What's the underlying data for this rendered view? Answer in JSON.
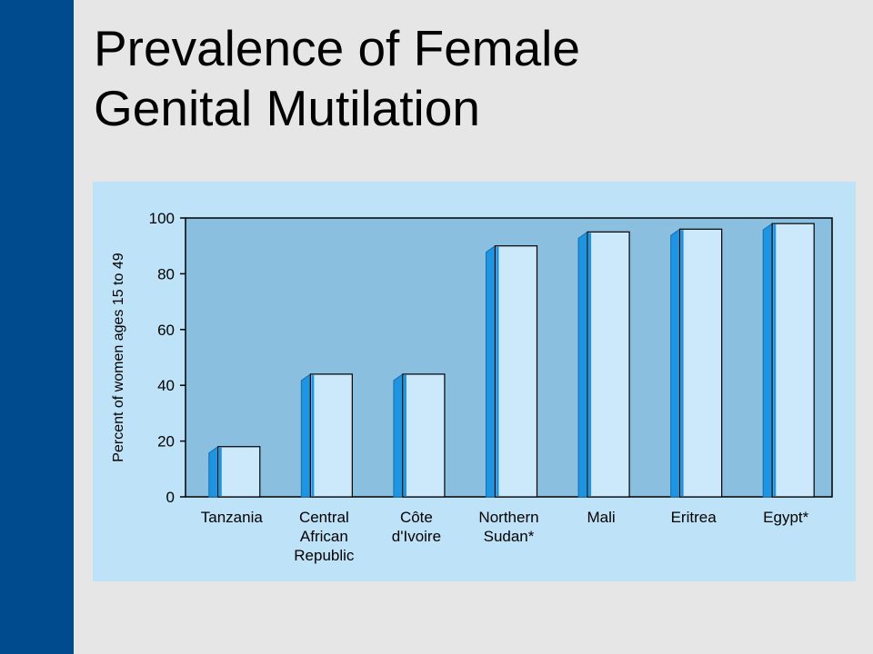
{
  "slide": {
    "title_line1": "Prevalence of Female",
    "title_line2": "Genital Mutilation"
  },
  "colors": {
    "side_bar": "#004b8d",
    "panel_background": "#bee2f7",
    "plot_background": "#8bbfe0",
    "bar_fill": "#cbe9fb",
    "bar_edge": "#1f94e0"
  },
  "chart_data": {
    "type": "bar",
    "title": "",
    "xlabel": "",
    "ylabel": "Percent of women ages 15 to 49",
    "ylim": [
      0,
      100
    ],
    "yticks": [
      "0",
      "20",
      "40",
      "60",
      "80",
      "100"
    ],
    "grid": false,
    "categories": [
      [
        "Tanzania"
      ],
      [
        "Central",
        "African",
        "Republic"
      ],
      [
        "Côte",
        "d'Ivoire"
      ],
      [
        "Northern",
        "Sudan*"
      ],
      [
        "Mali"
      ],
      [
        "Eritrea"
      ],
      [
        "Egypt*"
      ]
    ],
    "values": [
      18,
      44,
      44,
      90,
      95,
      96,
      98
    ]
  }
}
